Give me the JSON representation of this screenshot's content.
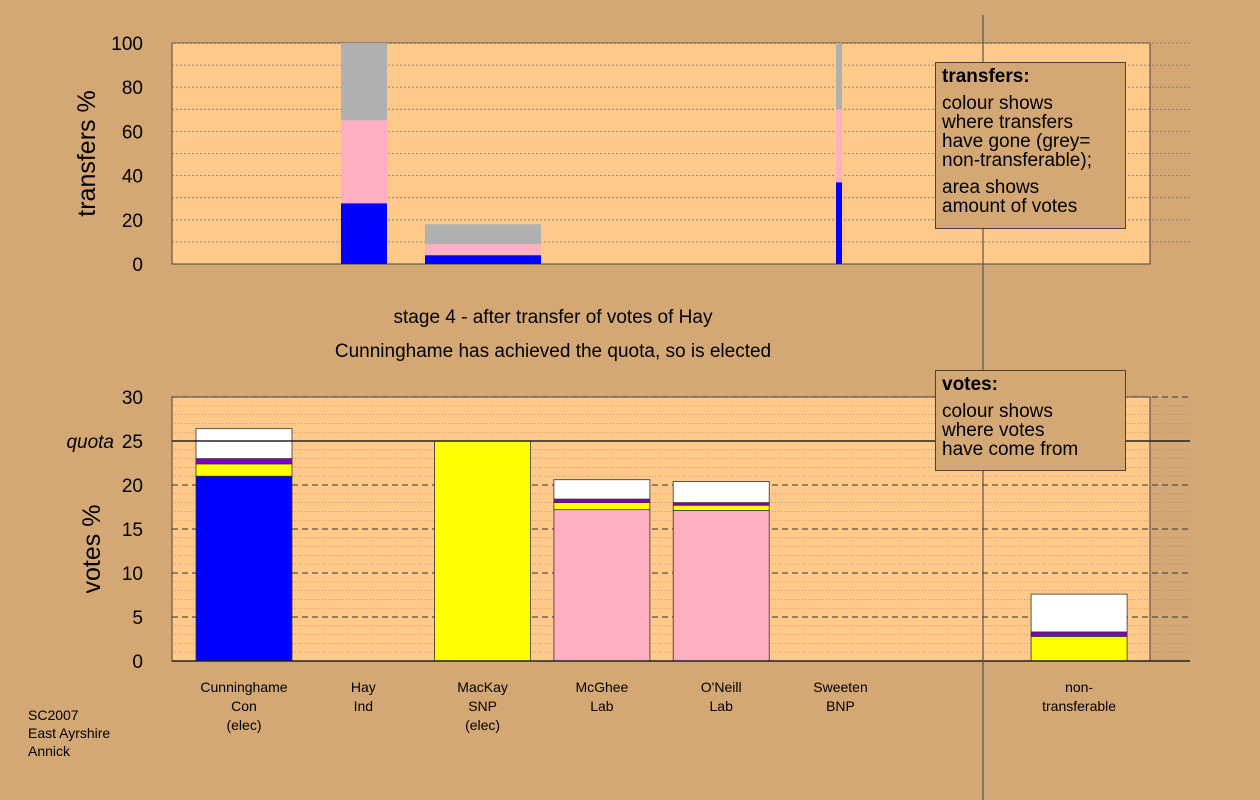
{
  "titles": {
    "stage": "stage 4 - after transfer of votes of Hay",
    "status": "Cunninghame has achieved the quota, so is elected"
  },
  "credit": [
    "SC2007",
    "East Ayrshire",
    "Annick"
  ],
  "legend_transfers": {
    "title": "transfers:",
    "lines1": [
      "colour shows",
      "where transfers",
      "have gone (grey=",
      "non-transferable);"
    ],
    "lines2": [
      "area shows",
      "amount of votes"
    ]
  },
  "legend_votes": {
    "title": "votes:",
    "lines": [
      "colour shows",
      "where votes",
      "have come from"
    ]
  },
  "colors": {
    "background": "#d4a874",
    "plot_bg": "#ffc98a",
    "blue": "#0000ff",
    "pink": "#ffb0c0",
    "grey": "#b0b0b0",
    "yellow": "#ffff00",
    "purple": "#8000c0",
    "white": "#ffffff"
  },
  "chart_data": [
    {
      "type": "bar",
      "ylabel": "transfers %",
      "ylim": [
        0,
        100
      ],
      "yticks": [
        0,
        20,
        40,
        60,
        80,
        100
      ],
      "bars": [
        {
          "category": "Hay",
          "segments": [
            {
              "color": "blue",
              "value": 27.5
            },
            {
              "color": "pink",
              "value": 37.5
            },
            {
              "color": "grey",
              "value": 35
            }
          ]
        },
        {
          "category": "MacKay",
          "segments": [
            {
              "color": "blue",
              "value": 4
            },
            {
              "color": "pink",
              "value": 5
            },
            {
              "color": "grey",
              "value": 9
            }
          ]
        },
        {
          "category": "Sweeten",
          "segments": [
            {
              "color": "blue",
              "value": 37
            },
            {
              "color": "pink",
              "value": 33
            },
            {
              "color": "grey",
              "value": 30
            }
          ]
        }
      ]
    },
    {
      "type": "bar",
      "ylabel": "votes %",
      "ylim": [
        0,
        30
      ],
      "yticks": [
        0,
        5,
        10,
        15,
        20,
        25,
        30
      ],
      "quota": 25,
      "quota_label": "quota",
      "categories": [
        {
          "name": "Cunninghame",
          "party": "Con",
          "note": "(elec)"
        },
        {
          "name": "Hay",
          "party": "Ind",
          "note": ""
        },
        {
          "name": "MacKay",
          "party": "SNP",
          "note": "(elec)"
        },
        {
          "name": "McGhee",
          "party": "Lab",
          "note": ""
        },
        {
          "name": "O'Neill",
          "party": "Lab",
          "note": ""
        },
        {
          "name": "Sweeten",
          "party": "BNP",
          "note": ""
        },
        {
          "name": "",
          "party": "",
          "note": ""
        },
        {
          "name": "non-",
          "party": "transferable",
          "note": ""
        }
      ],
      "bars": [
        {
          "category": "Cunninghame",
          "segments": [
            {
              "color": "blue",
              "value": 21
            },
            {
              "color": "yellow",
              "value": 1.4
            },
            {
              "color": "purple",
              "value": 0.6
            },
            {
              "color": "white",
              "value": 3.4
            }
          ]
        },
        {
          "category": "Hay",
          "segments": []
        },
        {
          "category": "MacKay",
          "segments": [
            {
              "color": "yellow",
              "value": 25
            }
          ]
        },
        {
          "category": "McGhee",
          "segments": [
            {
              "color": "pink",
              "value": 17.2
            },
            {
              "color": "yellow",
              "value": 0.8
            },
            {
              "color": "purple",
              "value": 0.4
            },
            {
              "color": "white",
              "value": 2.2
            }
          ]
        },
        {
          "category": "O'Neill",
          "segments": [
            {
              "color": "pink",
              "value": 17.1
            },
            {
              "color": "yellow",
              "value": 0.6
            },
            {
              "color": "purple",
              "value": 0.3
            },
            {
              "color": "white",
              "value": 2.4
            }
          ]
        },
        {
          "category": "Sweeten",
          "segments": []
        },
        {
          "category": "",
          "segments": []
        },
        {
          "category": "non-transferable",
          "segments": [
            {
              "color": "yellow",
              "value": 2.8
            },
            {
              "color": "purple",
              "value": 0.5
            },
            {
              "color": "white",
              "value": 4.3
            }
          ]
        }
      ]
    }
  ]
}
